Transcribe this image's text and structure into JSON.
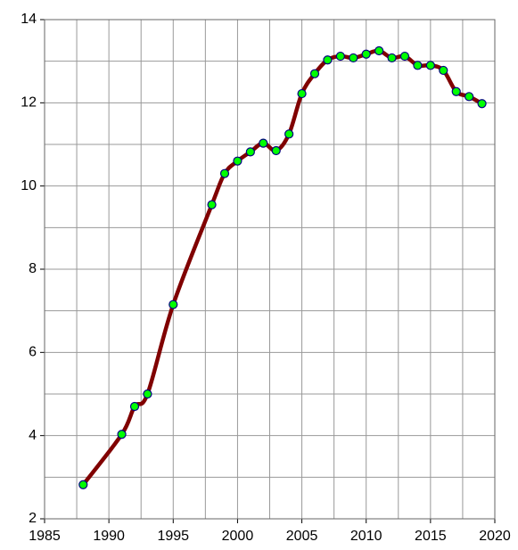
{
  "chart_data": {
    "type": "line",
    "x": [
      1988,
      1991,
      1992,
      1993,
      1995,
      1998,
      1999,
      2000,
      2001,
      2002,
      2003,
      2004,
      2005,
      2006,
      2007,
      2008,
      2009,
      2010,
      2011,
      2012,
      2013,
      2014,
      2015,
      2016,
      2017,
      2018,
      2019
    ],
    "series": [
      {
        "color": "#800000",
        "marker_color": "#00ff00",
        "marker_edge": "#000080",
        "values": [
          2.82,
          4.03,
          4.7,
          5.0,
          7.15,
          9.55,
          10.3,
          10.6,
          10.82,
          11.03,
          10.85,
          11.25,
          12.22,
          12.7,
          13.03,
          13.12,
          13.08,
          13.17,
          13.25,
          13.08,
          13.12,
          12.9,
          12.9,
          12.78,
          12.27,
          12.15,
          11.98
        ]
      }
    ],
    "xlim": [
      1985,
      2020
    ],
    "xticks": [
      1985,
      1990,
      1995,
      2000,
      2005,
      2010,
      2015,
      2020
    ],
    "x_minor_ticks": [
      1987.5,
      1992.5,
      1997.5,
      2002.5,
      2007.5,
      2012.5,
      2017.5
    ],
    "ylim": [
      2,
      14
    ],
    "yticks": [
      2,
      4,
      6,
      8,
      10,
      12,
      14
    ],
    "y_minor_ticks": [
      3,
      5,
      7,
      9,
      11,
      13
    ],
    "grid": true
  }
}
